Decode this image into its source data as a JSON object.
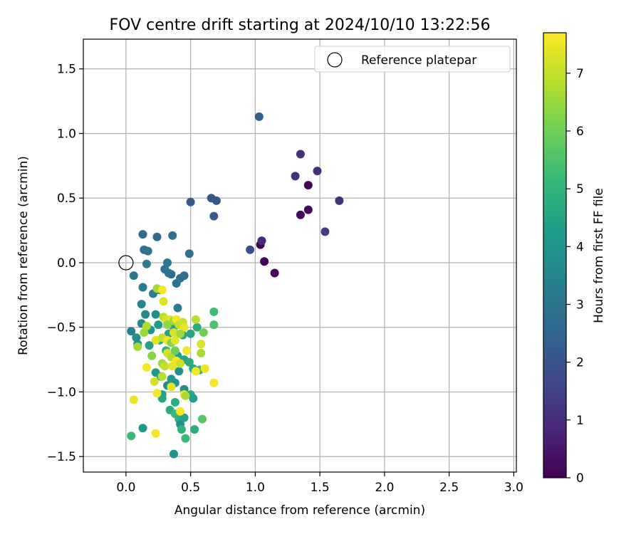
{
  "chart_data": {
    "type": "scatter",
    "title": "FOV centre drift starting at 2024/10/10 13:22:56",
    "xlabel": "Angular distance from reference (arcmin)",
    "ylabel": "Rotation from reference (arcmin)",
    "xlim": [
      -0.33,
      3.02
    ],
    "ylim": [
      -1.62,
      1.73
    ],
    "xticks": [
      0.0,
      0.5,
      1.0,
      1.5,
      2.0,
      2.5,
      3.0
    ],
    "xtick_labels": [
      "0.0",
      "0.5",
      "1.0",
      "1.5",
      "2.0",
      "2.5",
      "3.0"
    ],
    "yticks": [
      -1.5,
      -1.0,
      -0.5,
      0.0,
      0.5,
      1.0,
      1.5
    ],
    "ytick_labels": [
      "−1.5",
      "−1.0",
      "−0.5",
      "0.0",
      "0.5",
      "1.0",
      "1.5"
    ],
    "grid": true,
    "legend": {
      "position": "top-right",
      "entries": [
        "Reference platepar"
      ]
    },
    "reference_point": {
      "x": 0.0,
      "y": 0.0
    },
    "colorbar": {
      "label": "Hours from first FF file",
      "colormap": "viridis",
      "range": [
        0,
        7.7
      ],
      "ticks": [
        0,
        1,
        2,
        3,
        4,
        5,
        6,
        7
      ],
      "tick_labels": [
        "0",
        "1",
        "2",
        "3",
        "4",
        "5",
        "6",
        "7"
      ]
    },
    "colormap_stops": [
      "#440154",
      "#482878",
      "#3e4a89",
      "#31688e",
      "#26828e",
      "#1f9e89",
      "#35b779",
      "#6ece58",
      "#b5de2b",
      "#fde725"
    ],
    "points": [
      {
        "x": 1.04,
        "y": 0.14,
        "c": 0.0
      },
      {
        "x": 1.07,
        "y": 0.01,
        "c": 0.1
      },
      {
        "x": 1.15,
        "y": -0.08,
        "c": 0.1
      },
      {
        "x": 1.35,
        "y": 0.37,
        "c": 0.2
      },
      {
        "x": 1.41,
        "y": 0.41,
        "c": 0.2
      },
      {
        "x": 1.41,
        "y": 0.6,
        "c": 0.1
      },
      {
        "x": 1.05,
        "y": 0.17,
        "c": 0.9
      },
      {
        "x": 1.31,
        "y": 0.67,
        "c": 1.1
      },
      {
        "x": 1.35,
        "y": 0.84,
        "c": 1.0
      },
      {
        "x": 1.48,
        "y": 0.71,
        "c": 1.0
      },
      {
        "x": 1.65,
        "y": 0.48,
        "c": 1.1
      },
      {
        "x": 1.54,
        "y": 0.24,
        "c": 1.3
      },
      {
        "x": 0.96,
        "y": 0.1,
        "c": 1.7
      },
      {
        "x": 1.03,
        "y": 1.13,
        "c": 2.3
      },
      {
        "x": 0.5,
        "y": 0.47,
        "c": 2.2
      },
      {
        "x": 0.66,
        "y": 0.5,
        "c": 2.1
      },
      {
        "x": 0.7,
        "y": 0.48,
        "c": 2.1
      },
      {
        "x": 0.68,
        "y": 0.36,
        "c": 2.2
      },
      {
        "x": 0.13,
        "y": 0.22,
        "c": 2.7
      },
      {
        "x": 0.24,
        "y": 0.2,
        "c": 2.7
      },
      {
        "x": 0.36,
        "y": 0.21,
        "c": 2.8
      },
      {
        "x": 0.14,
        "y": 0.1,
        "c": 2.8
      },
      {
        "x": 0.17,
        "y": 0.09,
        "c": 2.9
      },
      {
        "x": 0.49,
        "y": 0.07,
        "c": 2.9
      },
      {
        "x": 0.16,
        "y": -0.01,
        "c": 3.2
      },
      {
        "x": 0.32,
        "y": 0.0,
        "c": 3.1
      },
      {
        "x": 0.06,
        "y": -0.1,
        "c": 3.1
      },
      {
        "x": 0.3,
        "y": -0.05,
        "c": 2.9
      },
      {
        "x": 0.33,
        "y": -0.08,
        "c": 2.9
      },
      {
        "x": 0.35,
        "y": -0.09,
        "c": 2.8
      },
      {
        "x": 0.42,
        "y": -0.12,
        "c": 2.8
      },
      {
        "x": 0.45,
        "y": -0.1,
        "c": 2.9
      },
      {
        "x": 0.39,
        "y": -0.16,
        "c": 3.0
      },
      {
        "x": 0.13,
        "y": -0.19,
        "c": 3.2
      },
      {
        "x": 0.21,
        "y": -0.24,
        "c": 3.3
      },
      {
        "x": 0.26,
        "y": -0.21,
        "c": 3.4
      },
      {
        "x": 0.12,
        "y": -0.32,
        "c": 3.5
      },
      {
        "x": 0.4,
        "y": -0.35,
        "c": 3.3
      },
      {
        "x": 0.15,
        "y": -0.4,
        "c": 3.6
      },
      {
        "x": 0.23,
        "y": -0.4,
        "c": 3.7
      },
      {
        "x": 0.12,
        "y": -0.47,
        "c": 3.6
      },
      {
        "x": 0.04,
        "y": -0.53,
        "c": 3.4
      },
      {
        "x": 0.08,
        "y": -0.58,
        "c": 3.8
      },
      {
        "x": 0.09,
        "y": -0.63,
        "c": 3.9
      },
      {
        "x": 0.19,
        "y": -0.52,
        "c": 4.0
      },
      {
        "x": 0.25,
        "y": -0.48,
        "c": 4.2
      },
      {
        "x": 0.33,
        "y": -0.55,
        "c": 4.4
      },
      {
        "x": 0.37,
        "y": -0.5,
        "c": 4.5
      },
      {
        "x": 0.44,
        "y": -0.56,
        "c": 4.6
      },
      {
        "x": 0.5,
        "y": -0.55,
        "c": 4.5
      },
      {
        "x": 0.55,
        "y": -0.5,
        "c": 4.7
      },
      {
        "x": 0.68,
        "y": -0.38,
        "c": 5.3
      },
      {
        "x": 0.68,
        "y": -0.48,
        "c": 5.5
      },
      {
        "x": 0.6,
        "y": -0.54,
        "c": 6.0
      },
      {
        "x": 0.18,
        "y": -0.64,
        "c": 4.4
      },
      {
        "x": 0.26,
        "y": -0.6,
        "c": 4.8
      },
      {
        "x": 0.31,
        "y": -0.68,
        "c": 4.9
      },
      {
        "x": 0.4,
        "y": -0.72,
        "c": 4.3
      },
      {
        "x": 0.45,
        "y": -0.75,
        "c": 4.4
      },
      {
        "x": 0.49,
        "y": -0.77,
        "c": 4.7
      },
      {
        "x": 0.52,
        "y": -0.82,
        "c": 4.6
      },
      {
        "x": 0.57,
        "y": -0.83,
        "c": 4.9
      },
      {
        "x": 0.41,
        "y": -0.84,
        "c": 3.7
      },
      {
        "x": 0.23,
        "y": -0.85,
        "c": 4.1
      },
      {
        "x": 0.27,
        "y": -0.88,
        "c": 4.6
      },
      {
        "x": 0.35,
        "y": -0.9,
        "c": 4.2
      },
      {
        "x": 0.38,
        "y": -0.93,
        "c": 4.0
      },
      {
        "x": 0.32,
        "y": -0.95,
        "c": 3.7
      },
      {
        "x": 0.28,
        "y": -1.02,
        "c": 4.3
      },
      {
        "x": 0.28,
        "y": -1.05,
        "c": 4.6
      },
      {
        "x": 0.38,
        "y": -1.08,
        "c": 4.8
      },
      {
        "x": 0.45,
        "y": -0.98,
        "c": 3.8
      },
      {
        "x": 0.5,
        "y": -1.02,
        "c": 4.6
      },
      {
        "x": 0.52,
        "y": -1.05,
        "c": 4.3
      },
      {
        "x": 0.34,
        "y": -1.14,
        "c": 4.7
      },
      {
        "x": 0.38,
        "y": -1.17,
        "c": 5.2
      },
      {
        "x": 0.41,
        "y": -1.21,
        "c": 4.9
      },
      {
        "x": 0.45,
        "y": -1.2,
        "c": 4.5
      },
      {
        "x": 0.42,
        "y": -1.25,
        "c": 3.9
      },
      {
        "x": 0.43,
        "y": -1.29,
        "c": 5.0
      },
      {
        "x": 0.46,
        "y": -1.36,
        "c": 5.2
      },
      {
        "x": 0.53,
        "y": -1.29,
        "c": 4.8
      },
      {
        "x": 0.59,
        "y": -1.21,
        "c": 5.6
      },
      {
        "x": 0.13,
        "y": -1.28,
        "c": 4.1
      },
      {
        "x": 0.04,
        "y": -1.34,
        "c": 5.2
      },
      {
        "x": 0.37,
        "y": -1.48,
        "c": 4.0
      },
      {
        "x": 0.09,
        "y": -0.65,
        "c": 6.6
      },
      {
        "x": 0.14,
        "y": -0.54,
        "c": 6.5
      },
      {
        "x": 0.16,
        "y": -0.49,
        "c": 6.8
      },
      {
        "x": 0.23,
        "y": -0.6,
        "c": 7.4
      },
      {
        "x": 0.24,
        "y": -0.2,
        "c": 6.6
      },
      {
        "x": 0.28,
        "y": -0.21,
        "c": 7.6
      },
      {
        "x": 0.29,
        "y": -0.3,
        "c": 7.3
      },
      {
        "x": 0.29,
        "y": -0.42,
        "c": 6.9
      },
      {
        "x": 0.31,
        "y": -0.44,
        "c": 7.2
      },
      {
        "x": 0.34,
        "y": -0.44,
        "c": 7.4
      },
      {
        "x": 0.32,
        "y": -0.48,
        "c": 6.4
      },
      {
        "x": 0.37,
        "y": -0.45,
        "c": 6.5
      },
      {
        "x": 0.39,
        "y": -0.44,
        "c": 7.6
      },
      {
        "x": 0.41,
        "y": -0.48,
        "c": 7.0
      },
      {
        "x": 0.44,
        "y": -0.46,
        "c": 7.1
      },
      {
        "x": 0.45,
        "y": -0.5,
        "c": 7.5
      },
      {
        "x": 0.54,
        "y": -0.44,
        "c": 6.9
      },
      {
        "x": 0.37,
        "y": -0.54,
        "c": 7.3
      },
      {
        "x": 0.42,
        "y": -0.55,
        "c": 6.6
      },
      {
        "x": 0.28,
        "y": -0.58,
        "c": 7.0
      },
      {
        "x": 0.32,
        "y": -0.6,
        "c": 7.5
      },
      {
        "x": 0.35,
        "y": -0.62,
        "c": 6.3
      },
      {
        "x": 0.38,
        "y": -0.6,
        "c": 7.4
      },
      {
        "x": 0.32,
        "y": -0.7,
        "c": 7.2
      },
      {
        "x": 0.35,
        "y": -0.73,
        "c": 6.8
      },
      {
        "x": 0.38,
        "y": -0.68,
        "c": 6.0
      },
      {
        "x": 0.47,
        "y": -0.68,
        "c": 7.6
      },
      {
        "x": 0.58,
        "y": -0.7,
        "c": 6.7
      },
      {
        "x": 0.2,
        "y": -0.72,
        "c": 6.3
      },
      {
        "x": 0.28,
        "y": -0.78,
        "c": 6.6
      },
      {
        "x": 0.3,
        "y": -0.8,
        "c": 7.0
      },
      {
        "x": 0.36,
        "y": -0.8,
        "c": 7.4
      },
      {
        "x": 0.39,
        "y": -0.76,
        "c": 7.6
      },
      {
        "x": 0.42,
        "y": -0.78,
        "c": 7.1
      },
      {
        "x": 0.16,
        "y": -0.81,
        "c": 7.6
      },
      {
        "x": 0.54,
        "y": -0.84,
        "c": 7.6
      },
      {
        "x": 0.61,
        "y": -0.82,
        "c": 7.5
      },
      {
        "x": 0.28,
        "y": -0.88,
        "c": 6.9
      },
      {
        "x": 0.22,
        "y": -0.92,
        "c": 7.2
      },
      {
        "x": 0.35,
        "y": -0.96,
        "c": 7.4
      },
      {
        "x": 0.24,
        "y": -1.01,
        "c": 7.6
      },
      {
        "x": 0.45,
        "y": -1.02,
        "c": 7.6
      },
      {
        "x": 0.46,
        "y": -1.03,
        "c": 6.7
      },
      {
        "x": 0.06,
        "y": -1.06,
        "c": 7.5
      },
      {
        "x": 0.42,
        "y": -1.15,
        "c": 7.6
      },
      {
        "x": 0.23,
        "y": -1.32,
        "c": 7.6
      },
      {
        "x": 0.68,
        "y": -0.93,
        "c": 7.6
      },
      {
        "x": 0.58,
        "y": -0.63,
        "c": 7.3
      }
    ]
  }
}
